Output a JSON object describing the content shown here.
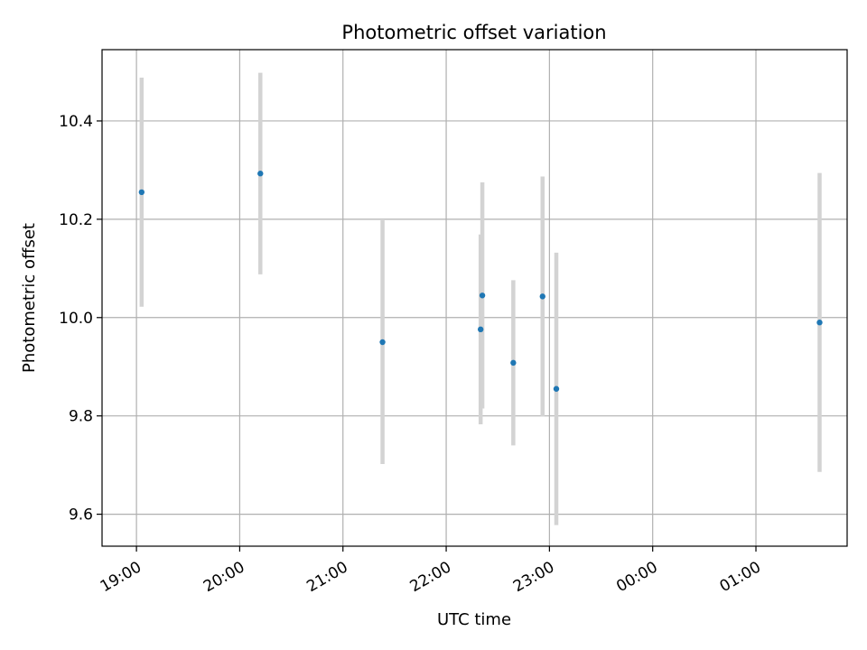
{
  "chart_data": {
    "type": "scatter",
    "title": "Photometric offset variation",
    "xlabel": "UTC time",
    "ylabel": "Photometric offset",
    "x_unit": "UTC time (HH:MM)",
    "xlim": [
      "18:40",
      "01:53"
    ],
    "ylim": [
      9.535,
      10.545
    ],
    "x_ticks": [
      "19:00",
      "20:00",
      "21:00",
      "22:00",
      "23:00",
      "00:00",
      "01:00"
    ],
    "y_ticks": [
      9.6,
      9.8,
      10.0,
      10.2,
      10.4
    ],
    "y_tick_labels": [
      "9.6",
      "9.8",
      "10.0",
      "10.2",
      "10.4"
    ],
    "grid": true,
    "colors": {
      "point": "#1f77b4",
      "errorbar": "#d3d3d3",
      "grid": "#b0b0b0"
    },
    "points": [
      {
        "x": "19:03",
        "y": 10.255,
        "err": 0.233
      },
      {
        "x": "20:12",
        "y": 10.293,
        "err": 0.205
      },
      {
        "x": "21:23",
        "y": 9.95,
        "err": 0.248
      },
      {
        "x": "22:20",
        "y": 9.976,
        "err": 0.193
      },
      {
        "x": "22:21",
        "y": 10.045,
        "err": 0.23
      },
      {
        "x": "22:39",
        "y": 9.908,
        "err": 0.168
      },
      {
        "x": "22:56",
        "y": 10.043,
        "err": 0.244
      },
      {
        "x": "23:04",
        "y": 9.855,
        "err": 0.277
      },
      {
        "x": "01:37",
        "y": 9.99,
        "err": 0.304
      }
    ]
  }
}
